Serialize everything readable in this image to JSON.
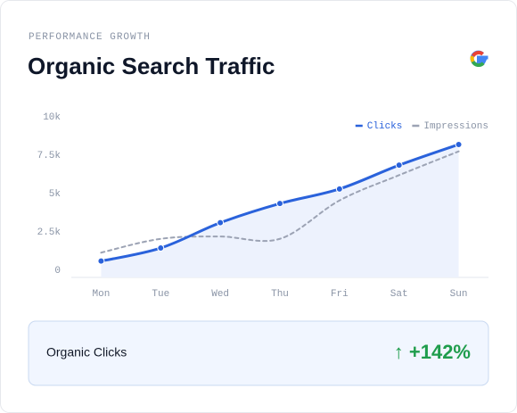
{
  "header": {
    "eyebrow": "PERFORMANCE GROWTH",
    "title": "Organic Search Traffic"
  },
  "chart_data": {
    "type": "line",
    "categories": [
      "Mon",
      "Tue",
      "Wed",
      "Thu",
      "Fri",
      "Sat",
      "Sun"
    ],
    "series": [
      {
        "name": "Clicks",
        "color": "#2a62db",
        "values": [
          600,
          1450,
          3100,
          4350,
          5300,
          6850,
          8200
        ]
      },
      {
        "name": "Impressions",
        "color": "#9ca3b4",
        "values": [
          1150,
          2050,
          2200,
          2050,
          4550,
          6200,
          7750
        ]
      }
    ],
    "ylim": [
      0,
      10000
    ],
    "yticks": [
      0,
      {
        "value": 2500,
        "label": "2.5k"
      },
      {
        "value": 5000,
        "label": "5k"
      },
      {
        "value": 7500,
        "label": "7.5k"
      },
      {
        "value": 10000,
        "label": "10k"
      }
    ],
    "legend": "top-right"
  },
  "summary": {
    "label": "Organic Clicks",
    "change": "↑ +142%"
  }
}
